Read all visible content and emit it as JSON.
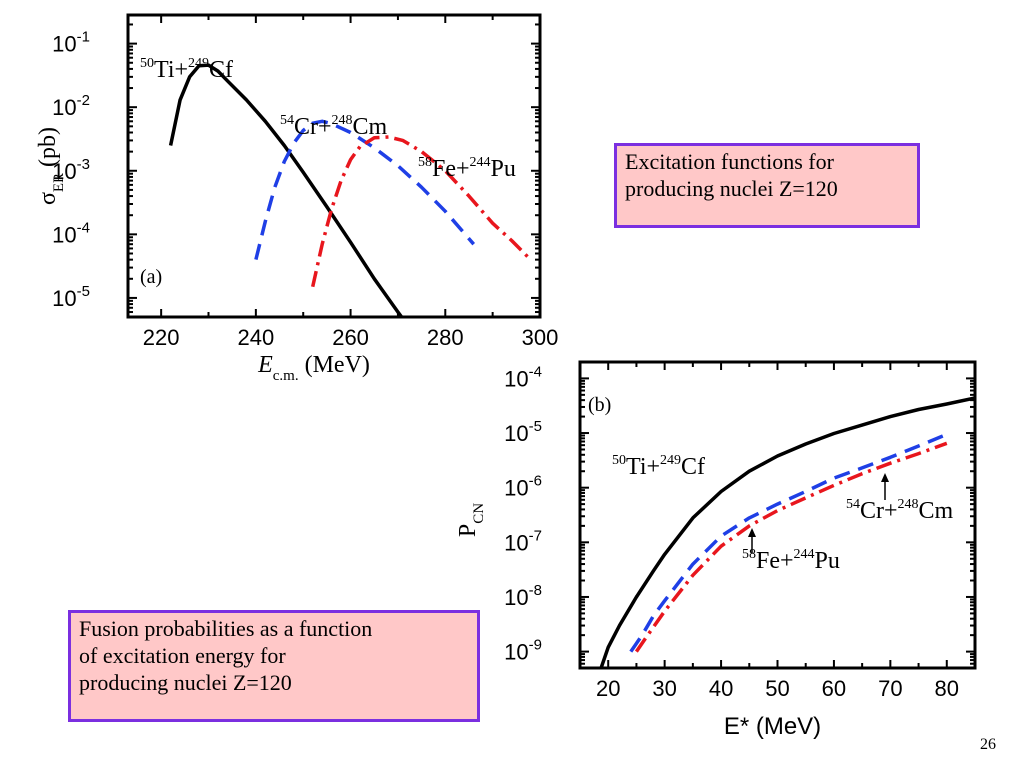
{
  "notes": {
    "top_right": [
      "Excitation functions  for",
      "producing nuclei Z=120"
    ],
    "bottom_left": [
      "Fusion probabilities as a function",
      "of excitation energy  for",
      "producing nuclei Z=120"
    ]
  },
  "page_number": "26",
  "colors": {
    "black": "#000000",
    "blue": "#1f3fe6",
    "red": "#e8161d",
    "note_bg": "#ffc8c8",
    "note_border": "#7b2fe0"
  },
  "chart_data": [
    {
      "type": "line",
      "panel_label": "(a)",
      "xlabel": {
        "symbol": "E",
        "sub": "c.m.",
        "unit": "(MeV)"
      },
      "ylabel": {
        "symbol": "σ",
        "sub": "ER",
        "unit": "(pb)"
      },
      "xlim": [
        213,
        300
      ],
      "ylim_log10": [
        -5.3,
        -0.55
      ],
      "y_scale": "log",
      "x_ticks": [
        220,
        240,
        260,
        280,
        300
      ],
      "y_ticks": [
        {
          "base": "10",
          "exp": "-1"
        },
        {
          "base": "10",
          "exp": "-2"
        },
        {
          "base": "10",
          "exp": "-3"
        },
        {
          "base": "10",
          "exp": "-4"
        },
        {
          "base": "10",
          "exp": "-5"
        }
      ],
      "y_tick_log10": [
        -1,
        -2,
        -3,
        -4,
        -5
      ],
      "series": [
        {
          "name": "50Ti+249Cf",
          "label": {
            "m1": "50",
            "e1": "Ti+",
            "m2": "249",
            "e2": "Cf"
          },
          "color": "#000000",
          "dash": "solid",
          "x": [
            222,
            224,
            226,
            228,
            230,
            232,
            234,
            238,
            242,
            246,
            250,
            255,
            260,
            265,
            270,
            276
          ],
          "y": [
            0.0025,
            0.013,
            0.03,
            0.045,
            0.046,
            0.037,
            0.026,
            0.013,
            0.006,
            0.0025,
            0.00095,
            0.00027,
            7.5e-05,
            2e-05,
            6e-06,
            1.5e-06
          ]
        },
        {
          "name": "54Cr+248Cm",
          "label": {
            "m1": "54",
            "e1": "Cr+",
            "m2": "248",
            "e2": "Cm"
          },
          "color": "#1f3fe6",
          "dash": "dashed",
          "x": [
            240,
            242,
            244,
            246,
            248,
            250,
            252,
            254,
            256,
            260,
            265,
            270,
            275,
            280,
            286
          ],
          "y": [
            4e-05,
            0.00016,
            0.00055,
            0.0014,
            0.0027,
            0.0043,
            0.0056,
            0.006,
            0.0055,
            0.004,
            0.0023,
            0.0012,
            0.00055,
            0.00023,
            7e-05
          ]
        },
        {
          "name": "58Fe+244Pu",
          "label": {
            "m1": "58",
            "e1": "Fe+",
            "m2": "244",
            "e2": "Pu"
          },
          "color": "#e8161d",
          "dash": "dashdot",
          "x": [
            252,
            254,
            256,
            258,
            260,
            262,
            265,
            268,
            271,
            275,
            280,
            285,
            290,
            294,
            298
          ],
          "y": [
            1.5e-05,
            7e-05,
            0.00025,
            0.0007,
            0.0015,
            0.0024,
            0.0033,
            0.0034,
            0.003,
            0.002,
            0.001,
            0.0004,
            0.00015,
            8e-05,
            4e-05
          ]
        }
      ]
    },
    {
      "type": "line",
      "panel_label": "(b)",
      "xlabel": "E* (MeV)",
      "ylabel": {
        "symbol": "P",
        "sub": "CN"
      },
      "xlim": [
        15,
        85
      ],
      "ylim_log10": [
        -9.3,
        -3.7
      ],
      "y_scale": "log",
      "x_ticks": [
        20,
        30,
        40,
        50,
        60,
        70,
        80
      ],
      "y_ticks": [
        {
          "base": "10",
          "exp": "-4"
        },
        {
          "base": "10",
          "exp": "-5"
        },
        {
          "base": "10",
          "exp": "-6"
        },
        {
          "base": "10",
          "exp": "-7"
        },
        {
          "base": "10",
          "exp": "-8"
        },
        {
          "base": "10",
          "exp": "-9"
        }
      ],
      "y_tick_log10": [
        -4,
        -5,
        -6,
        -7,
        -8,
        -9
      ],
      "series": [
        {
          "name": "50Ti+249Cf",
          "label": {
            "m1": "50",
            "e1": "Ti+",
            "m2": "249",
            "e2": "Cf"
          },
          "color": "#000000",
          "dash": "solid",
          "x": [
            18,
            20,
            22,
            25,
            28,
            30,
            35,
            40,
            45,
            50,
            55,
            60,
            65,
            70,
            75,
            80,
            85
          ],
          "y": [
            3e-10,
            1.2e-09,
            3e-09,
            1e-08,
            3e-08,
            6e-08,
            2.8e-07,
            8.5e-07,
            2e-06,
            3.8e-06,
            6.3e-06,
            9.8e-06,
            1.4e-05,
            2e-05,
            2.7e-05,
            3.4e-05,
            4.4e-05
          ]
        },
        {
          "name": "54Cr+248Cm",
          "label": {
            "m1": "54",
            "e1": "Cr+",
            "m2": "248",
            "e2": "Cm"
          },
          "color": "#1f3fe6",
          "dash": "dashed",
          "x": [
            24,
            26,
            28,
            30,
            35,
            40,
            45,
            50,
            55,
            60,
            65,
            70,
            75,
            80
          ],
          "y": [
            1e-09,
            2e-09,
            4.5e-09,
            8.5e-09,
            4e-08,
            1.3e-07,
            2.8e-07,
            5e-07,
            8.5e-07,
            1.5e-06,
            2.3e-06,
            3.6e-06,
            5.8e-06,
            9.5e-06
          ]
        },
        {
          "name": "58Fe+244Pu",
          "label": {
            "m1": "58",
            "e1": "Fe+",
            "m2": "244",
            "e2": "Pu"
          },
          "color": "#e8161d",
          "dash": "dashdot",
          "x": [
            25,
            27,
            30,
            35,
            40,
            45,
            50,
            55,
            60,
            65,
            70,
            75,
            80
          ],
          "y": [
            1e-09,
            2e-09,
            5.5e-09,
            2.5e-08,
            8.5e-08,
            2e-07,
            3.8e-07,
            6.5e-07,
            1.1e-06,
            1.8e-06,
            2.8e-06,
            4.2e-06,
            6.5e-06
          ]
        }
      ]
    }
  ]
}
